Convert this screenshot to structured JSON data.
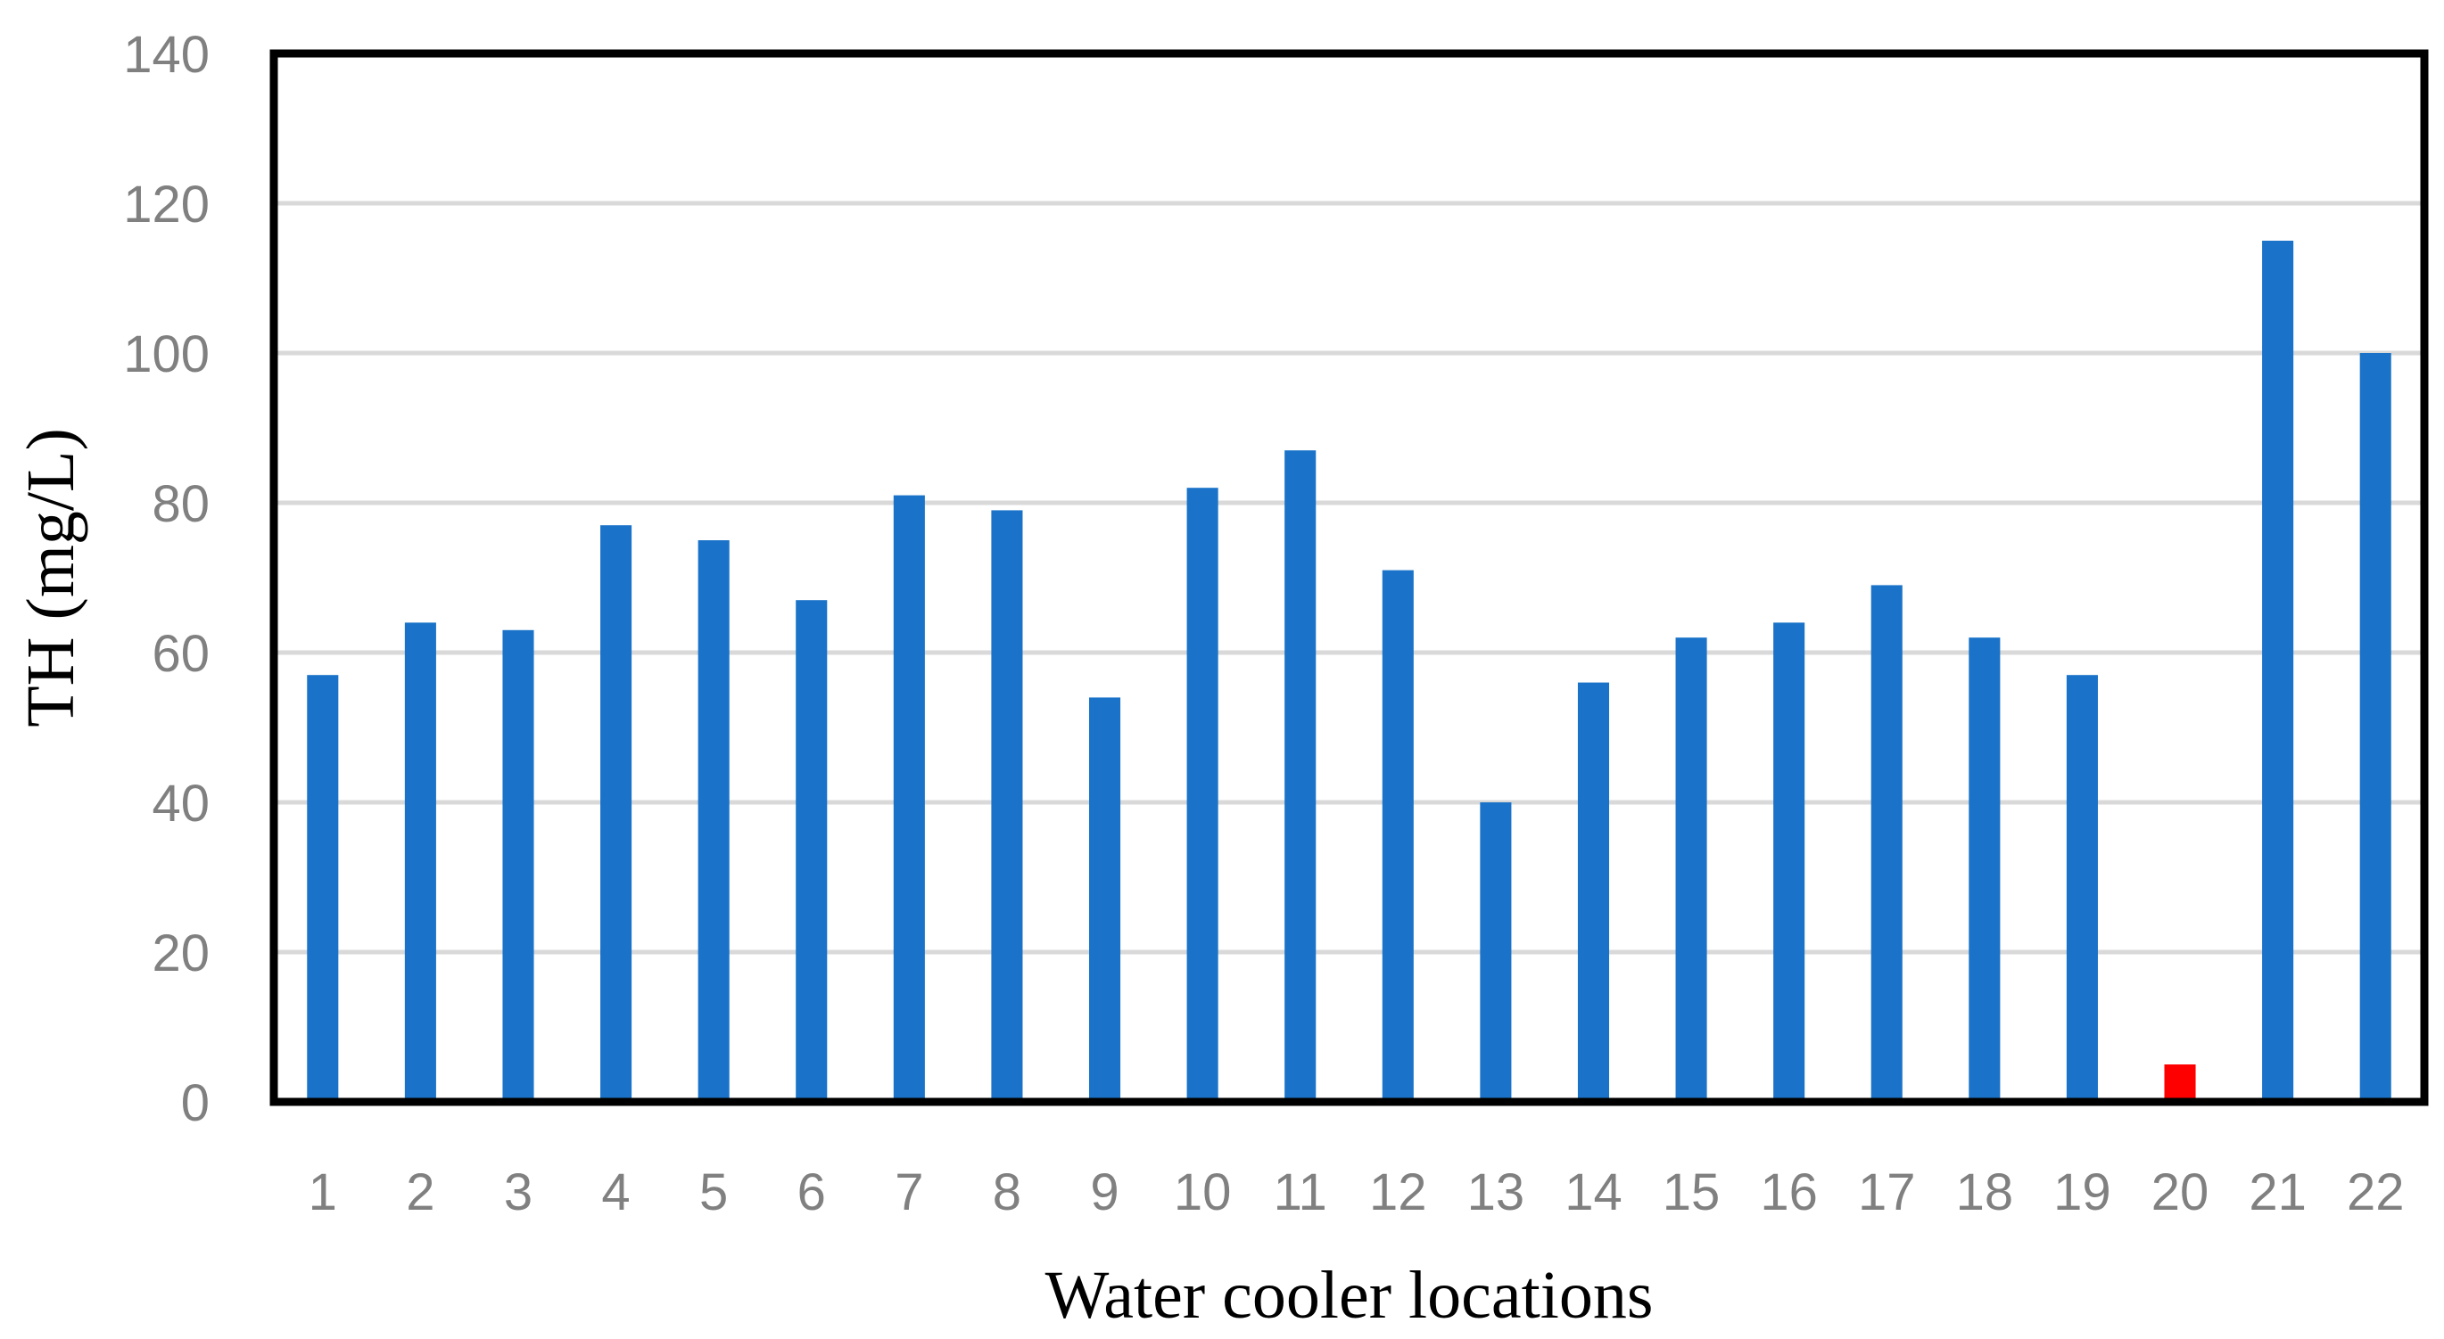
{
  "chart_data": {
    "type": "bar",
    "title": "",
    "xlabel": "Water cooler locations",
    "ylabel": "TH (mg/L)",
    "categories": [
      "1",
      "2",
      "3",
      "4",
      "5",
      "6",
      "7",
      "8",
      "9",
      "10",
      "11",
      "12",
      "13",
      "14",
      "15",
      "16",
      "17",
      "18",
      "19",
      "20",
      "21",
      "22"
    ],
    "values": [
      57,
      64,
      63,
      77,
      75,
      67,
      81,
      79,
      54,
      82,
      87,
      71,
      40,
      56,
      62,
      64,
      69,
      62,
      57,
      5,
      115,
      100
    ],
    "ylim": [
      0,
      140
    ],
    "yticks": [
      0,
      20,
      40,
      60,
      80,
      100,
      120,
      140
    ],
    "grid": true,
    "legend": "none",
    "colors": {
      "bar": "#1a73c8",
      "highlight": "#ff0000",
      "grid": "#d9d9d9",
      "frame": "#000000"
    },
    "highlight_categories": [
      "20"
    ]
  }
}
